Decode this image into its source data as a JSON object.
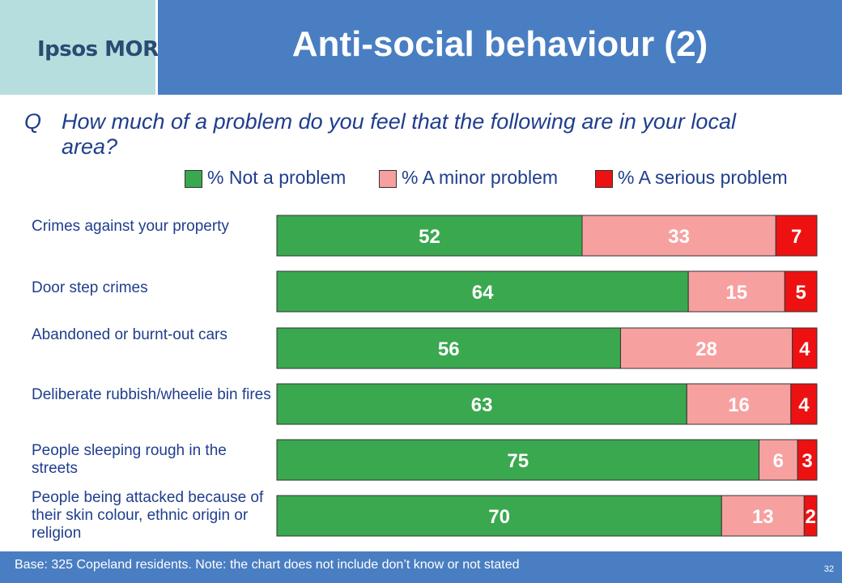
{
  "header": {
    "logo_text": "Ipsos MORI",
    "title": "Anti-social behaviour (2)"
  },
  "question": {
    "prefix": "Q",
    "text": "How much of a problem do you feel that the following are in your local area?"
  },
  "colors": {
    "not_problem": "#3aa84f",
    "minor_problem": "#f7a0a0",
    "serious_problem": "#ee1111",
    "text_blue": "#1f3e8c",
    "header_blue": "#4a7ec2",
    "logo_bg": "#b7dede"
  },
  "chart_data": {
    "type": "bar",
    "orientation": "horizontal",
    "stacked": true,
    "categories": [
      "Crimes against your property",
      "Door step crimes",
      "Abandoned or burnt-out cars",
      "Deliberate rubbish/wheelie bin fires",
      "People sleeping rough in the streets",
      "People being attacked because of their skin colour, ethnic origin or religion"
    ],
    "series": [
      {
        "name": "% Not a problem",
        "values": [
          52,
          64,
          56,
          63,
          75,
          70
        ]
      },
      {
        "name": "% A minor problem",
        "values": [
          33,
          15,
          28,
          16,
          6,
          13
        ]
      },
      {
        "name": "% A serious problem",
        "values": [
          7,
          5,
          4,
          4,
          3,
          2
        ]
      }
    ],
    "legend_position": "top",
    "grid": false
  },
  "footer": {
    "base_note": "Base: 325 Copeland residents.  Note: the chart does not include don’t know or not stated",
    "page_number": "32"
  }
}
